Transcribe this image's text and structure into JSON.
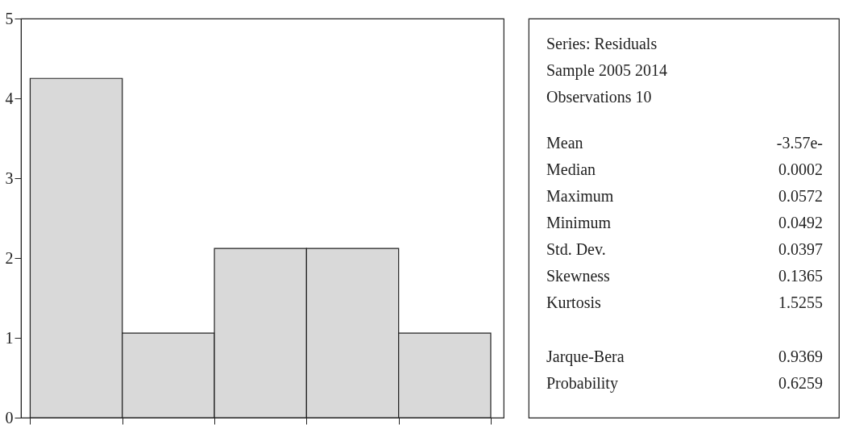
{
  "chart_data": [
    {
      "type": "bar",
      "categories": [
        null,
        null,
        null,
        null,
        null
      ],
      "values": [
        4.25,
        1.06,
        2.12,
        2.12,
        1.06
      ],
      "color": "#d9d9d9",
      "ylim": [
        0,
        5
      ],
      "yticks": [
        0,
        1,
        2,
        3,
        4,
        5
      ]
    },
    {
      "type": "other",
      "annotations": [
        "Series: Residuals",
        "Sample 2005 2014",
        "Observations 10",
        "Mean",
        "-3.57e-",
        "Median",
        "0.0002",
        "Maximum",
        "0.0572",
        "Minimum",
        "0.0492",
        "Std. Dev.",
        "0.0397",
        "Skewness",
        "0.1365",
        "Kurtosis",
        "1.5255",
        "Jarque-Bera",
        "0.9369",
        "Probability",
        "0.6259"
      ]
    }
  ]
}
